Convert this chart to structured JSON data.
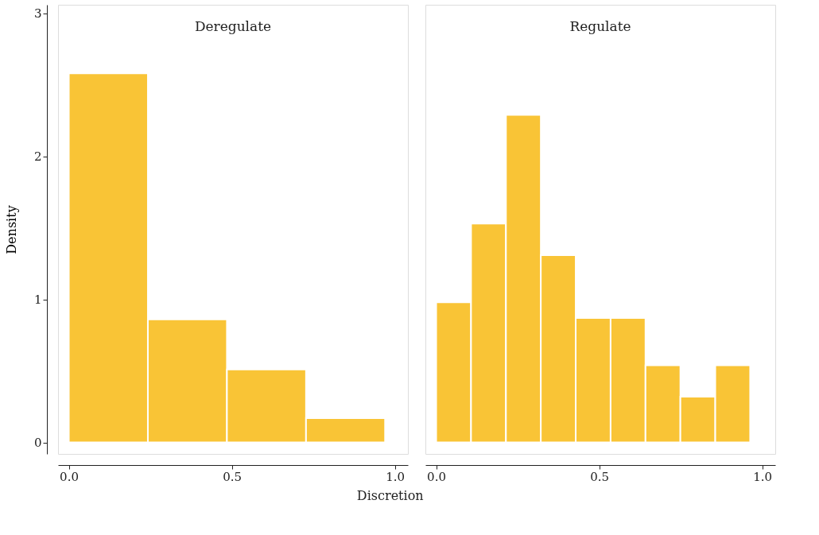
{
  "chart_data": [
    {
      "type": "histogram",
      "title": "Deregulate",
      "xlabel": "Discretion",
      "ylabel": "Density",
      "color": "#f9c436",
      "bins": [
        0,
        0.2425,
        0.485,
        0.7275,
        0.97
      ],
      "values": [
        2.58,
        0.86,
        0.51,
        0.17
      ],
      "xlim": [
        -0.033,
        1.04
      ],
      "ylim": [
        -0.08,
        3.06
      ],
      "xticks": [
        {
          "value": 0,
          "label": "0.0"
        },
        {
          "value": 0.5,
          "label": "0.5"
        },
        {
          "value": 1,
          "label": "1.0"
        }
      ],
      "yticks": [
        0,
        1,
        2,
        3
      ],
      "grid": false
    },
    {
      "type": "histogram",
      "title": "Regulate",
      "color": "#f9c436",
      "bins": [
        0,
        0.107,
        0.214,
        0.321,
        0.428,
        0.535,
        0.642,
        0.749,
        0.856,
        0.963
      ],
      "values": [
        0.98,
        1.53,
        2.29,
        1.31,
        0.87,
        0.87,
        0.54,
        0.32,
        0.54
      ],
      "xlim": [
        -0.033,
        1.04
      ],
      "ylim": [
        -0.08,
        3.06
      ],
      "xticks": [
        {
          "value": 0,
          "label": "0.0"
        },
        {
          "value": 0.5,
          "label": "0.5"
        },
        {
          "value": 1,
          "label": "1.0"
        }
      ],
      "yticks": [
        0,
        1,
        2,
        3
      ],
      "grid": false,
      "tick_labels": "x"
    }
  ]
}
